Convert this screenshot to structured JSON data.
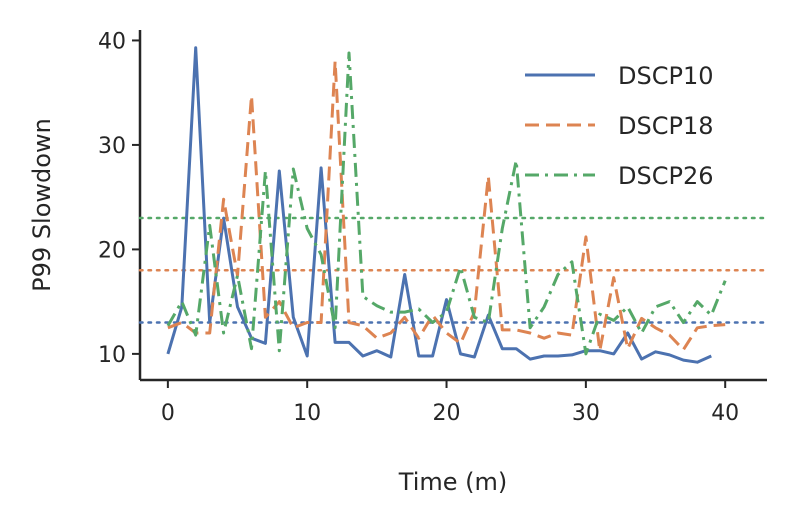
{
  "chart_data": {
    "type": "line",
    "title": "",
    "xlabel": "Time (m)",
    "ylabel": "P99 Slowdown",
    "xlim": [
      -2,
      43
    ],
    "ylim": [
      7.5,
      41
    ],
    "xticks": [
      0,
      10,
      20,
      30,
      40
    ],
    "yticks": [
      10,
      20,
      30,
      40
    ],
    "grid": false,
    "legend_position": "upper-right",
    "x": [
      0,
      1,
      2,
      3,
      4,
      5,
      6,
      7,
      8,
      9,
      10,
      11,
      12,
      13,
      14,
      15,
      16,
      17,
      18,
      19,
      20,
      21,
      22,
      23,
      24,
      25,
      26,
      27,
      28,
      29,
      30,
      31,
      32,
      33,
      34,
      35,
      36,
      37,
      38,
      39,
      40,
      41
    ],
    "series": [
      {
        "name": "DSCP10",
        "color": "#4c72b0",
        "dash": "solid",
        "values": [
          10,
          14.5,
          39.3,
          13,
          23,
          14.5,
          11.5,
          11,
          27.5,
          13.5,
          9.8,
          27.8,
          11.1,
          11.1,
          9.8,
          10.3,
          9.7,
          17.6,
          9.8,
          9.8,
          15.2,
          10,
          9.7,
          13.7,
          10.5,
          10.5,
          9.5,
          9.8,
          9.8,
          9.9,
          10.3,
          10.3,
          10,
          12,
          9.5,
          10.2,
          9.9,
          9.4,
          9.2,
          9.8,
          null,
          null
        ],
        "threshold": 13
      },
      {
        "name": "DSCP18",
        "color": "#dd8452",
        "dash": "dashed",
        "values": [
          12.5,
          13,
          12,
          12,
          24.8,
          17.5,
          34.7,
          13.5,
          15,
          12.5,
          13,
          13,
          38,
          13,
          12.7,
          11.5,
          12,
          13.5,
          11.5,
          13.7,
          12,
          11,
          14,
          27,
          12.3,
          12.3,
          12,
          11.5,
          12,
          11.8,
          21.2,
          10.3,
          17.3,
          10.5,
          13.4,
          12.5,
          11.8,
          10.4,
          12.5,
          12.7,
          12.8,
          null
        ],
        "threshold": 18
      },
      {
        "name": "DSCP26",
        "color": "#55a868",
        "dash": "dashdot",
        "values": [
          12.7,
          15,
          11.8,
          22.3,
          12,
          17.5,
          10.5,
          27.5,
          10.3,
          27.7,
          22,
          19.5,
          12.5,
          38.8,
          15.5,
          14.6,
          14,
          14,
          14.3,
          13,
          14,
          18.3,
          13.5,
          13,
          22,
          28.5,
          12.5,
          14.5,
          17.6,
          18.8,
          10,
          13.8,
          13.2,
          14.5,
          12,
          14.5,
          15,
          13,
          15,
          13.7,
          17,
          null
        ],
        "threshold": 23
      }
    ]
  }
}
